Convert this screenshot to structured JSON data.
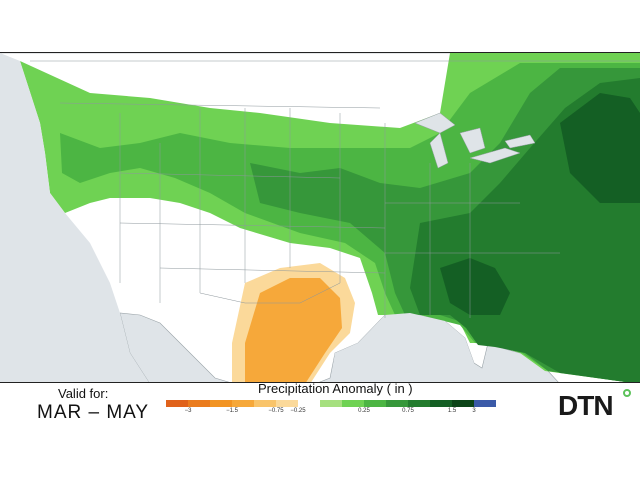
{
  "valid": {
    "label": "Valid for:",
    "range": "MAR – MAY"
  },
  "legend": {
    "title": "Precipitation Anomaly ( in )",
    "ticks": [
      {
        "label": "−3"
      },
      {
        "label": "−1.5"
      },
      {
        "label": "−0.75"
      },
      {
        "label": "−0.25"
      },
      {
        "label": "0.25"
      },
      {
        "label": "0.75"
      },
      {
        "label": "1.5"
      },
      {
        "label": "3"
      }
    ],
    "colors": [
      "#e0621b",
      "#ea7c1e",
      "#f29423",
      "#f6a83a",
      "#f9c46a",
      "#fbd99a",
      "#ffffff",
      "#a6e07f",
      "#6fd253",
      "#4cb543",
      "#36973a",
      "#237c2e",
      "#145f24",
      "#0c4418",
      "#3b5aa8"
    ]
  },
  "brand": {
    "name": "DTN"
  },
  "map": {
    "background_color": "#dfe4e8",
    "land_color": "#ffffff",
    "regions": [
      "us-states",
      "canada",
      "mexico",
      "great-lakes"
    ],
    "anomaly_levels": [
      {
        "label": "0.25",
        "color": "#6fd253"
      },
      {
        "label": "0.75",
        "color": "#4cb543"
      },
      {
        "label": "1.5",
        "color": "#36973a"
      },
      {
        "label": "3",
        "color": "#145f24"
      },
      {
        "label": "−0.25",
        "color": "#fbd99a"
      },
      {
        "label": "−0.75",
        "color": "#f6a83a"
      }
    ]
  }
}
